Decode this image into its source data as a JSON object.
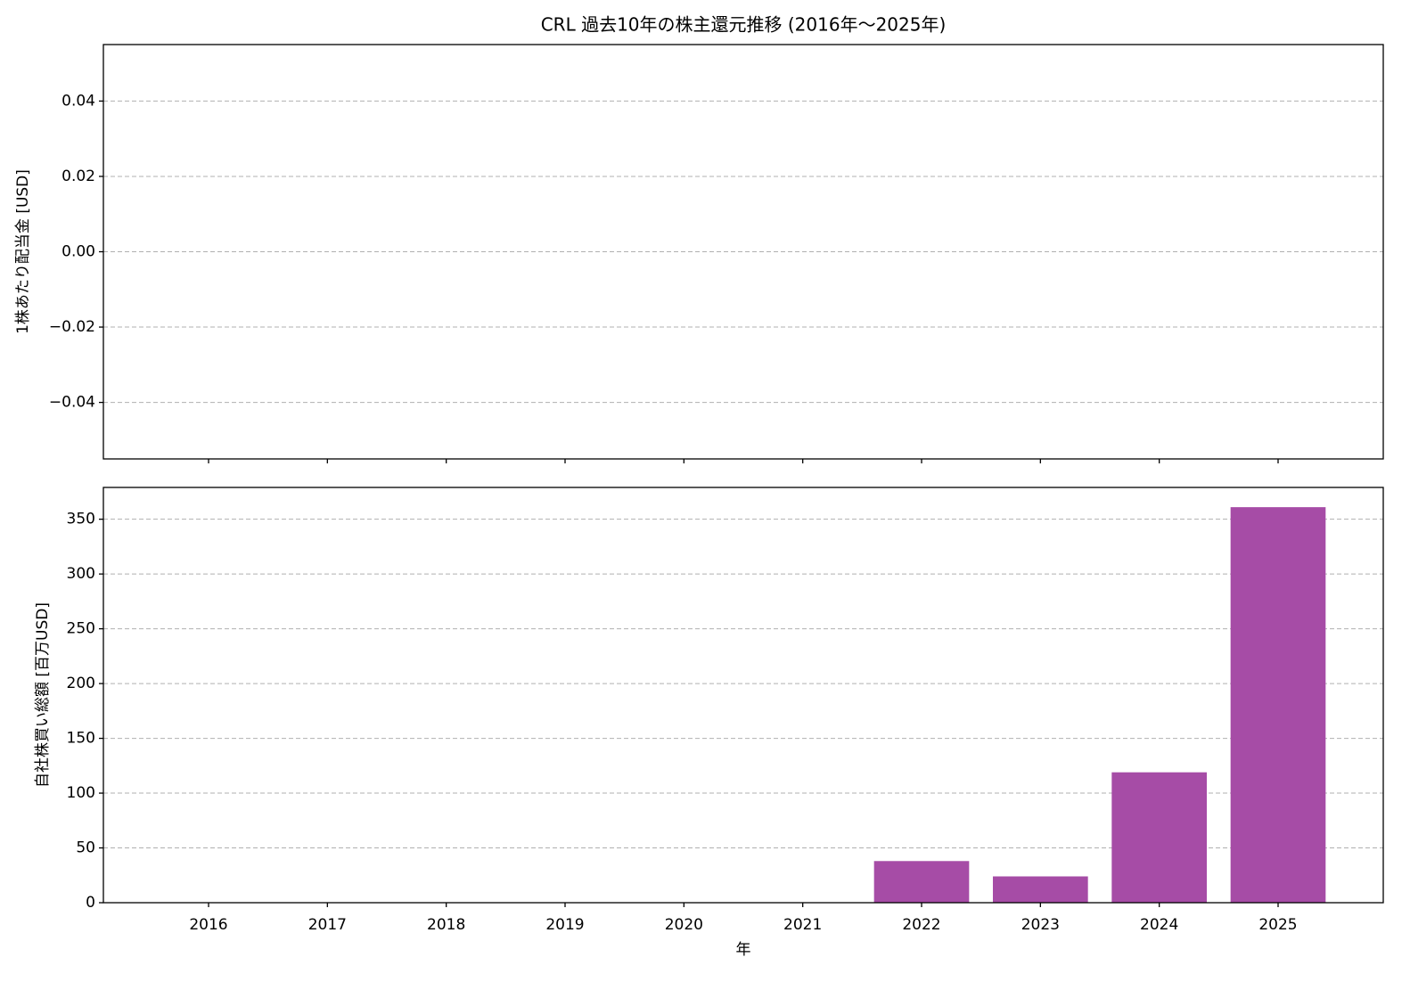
{
  "title": "CRL 過去10年の株主還元推移 (2016年〜2025年)",
  "chart_data": [
    {
      "type": "bar",
      "ylabel": "1株あたり配当金 [USD]",
      "values": [
        0,
        0,
        0,
        0,
        0,
        0,
        0,
        0,
        0,
        0
      ],
      "color": "#a64ca6",
      "ylim": [
        -0.055,
        0.055
      ],
      "yticks": [
        {
          "value": -0.04,
          "label": "−0.04"
        },
        {
          "value": -0.02,
          "label": "−0.02"
        },
        {
          "value": 0,
          "label": "0.00"
        },
        0.02,
        0.04
      ],
      "grid": true
    },
    {
      "type": "bar",
      "ylabel": "自社株買い総額 [百万USD]",
      "xlabel": "年",
      "categories": [
        "2016",
        "2017",
        "2018",
        "2019",
        "2020",
        "2021",
        "2022",
        "2023",
        "2024",
        "2025"
      ],
      "values": [
        0,
        0,
        0,
        0,
        0,
        0,
        38,
        24,
        119,
        361
      ],
      "color": "#a64ca6",
      "ylim": [
        0,
        379
      ],
      "yticks": [
        0,
        50,
        100,
        150,
        200,
        250,
        300,
        350
      ],
      "grid": true
    }
  ]
}
